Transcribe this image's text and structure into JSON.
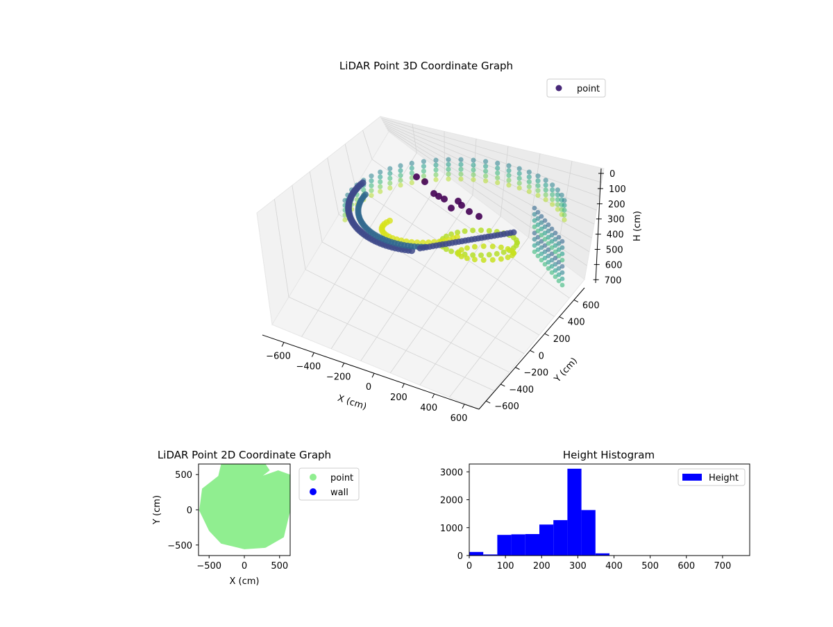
{
  "figure": {
    "background": "#ffffff"
  },
  "chart_data": [
    {
      "type": "scatter3d",
      "title": "LiDAR Point 3D Coordinate Graph",
      "xlabel": "X (cm)",
      "ylabel": "Y (cm)",
      "zlabel": "H (cm)",
      "xlim": [
        -700,
        700
      ],
      "ylim": [
        -700,
        700
      ],
      "zlim": [
        0,
        750
      ],
      "z_inverted": true,
      "xticks": [
        "−600",
        "−400",
        "−200",
        "0",
        "200",
        "400",
        "600"
      ],
      "yticks": [
        "600",
        "400",
        "200",
        "0",
        "−200",
        "−400",
        "−600"
      ],
      "zticks": [
        "0",
        "100",
        "200",
        "300",
        "400",
        "500",
        "600",
        "700"
      ],
      "grid": true,
      "colormap": "viridis",
      "legend": {
        "position": "top-right",
        "entries": [
          {
            "label": "point",
            "color": "#482878"
          }
        ]
      }
    },
    {
      "type": "scatter",
      "title": "LiDAR Point 2D Coordinate Graph",
      "xlabel": "X (cm)",
      "ylabel": "Y (cm)",
      "xlim": [
        -650,
        650
      ],
      "ylim": [
        -650,
        650
      ],
      "xticks": [
        "−500",
        "0",
        "500"
      ],
      "yticks": [
        "500",
        "0",
        "−500"
      ],
      "series": [
        {
          "name": "point",
          "color": "#90ee90"
        },
        {
          "name": "wall",
          "color": "#0000ff"
        }
      ],
      "legend": {
        "position": "outside-right"
      }
    },
    {
      "type": "bar",
      "title": "Height Histogram",
      "xlabel": "",
      "ylabel": "",
      "xlim": [
        0,
        775
      ],
      "ylim": [
        0,
        3280
      ],
      "xticks": [
        "0",
        "100",
        "200",
        "300",
        "400",
        "500",
        "600",
        "700"
      ],
      "yticks": [
        "0",
        "1000",
        "2000",
        "3000"
      ],
      "bin_width": 38.75,
      "bin_edges": [
        0,
        38.75,
        77.5,
        116.25,
        155,
        193.75,
        232.5,
        271.25,
        310,
        348.75,
        387.5,
        426.25,
        465,
        503.75,
        542.5,
        581.25,
        620,
        658.75,
        697.5,
        736.25,
        775
      ],
      "values": [
        130,
        40,
        740,
        760,
        770,
        1110,
        1270,
        3110,
        1630,
        80,
        5,
        0,
        0,
        0,
        0,
        0,
        0,
        0,
        0,
        5
      ],
      "color": "#0000ff",
      "legend": {
        "position": "top-right",
        "entries": [
          {
            "label": "Height",
            "color": "#0000ff"
          }
        ]
      }
    }
  ]
}
